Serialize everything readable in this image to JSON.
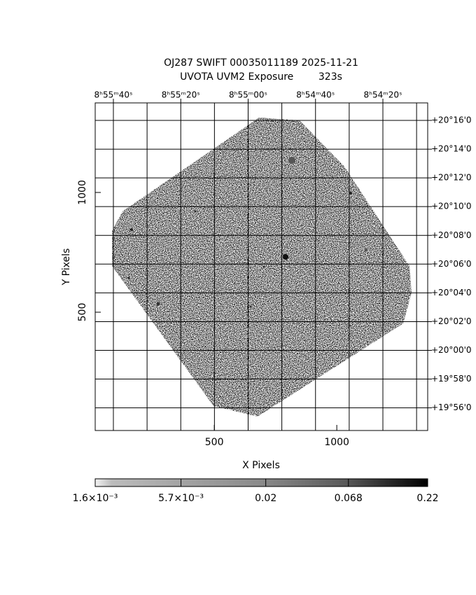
{
  "chart_data": {
    "type": "image",
    "title": "OJ287 SWIFT 00035011189 2025-11-21",
    "subtitle": "UVOTA UVM2 Exposure        323s",
    "x_label": "X Pixels",
    "y_label": "Y Pixels",
    "xlim": [
      14,
      1371
    ],
    "xticks": [
      500,
      1000
    ],
    "ylim": [
      6,
      1374
    ],
    "yticks": [
      500,
      1000
    ],
    "ra_lim": [
      3345.4,
      3246.7
    ],
    "ra_ticks": [
      {
        "value": 3340,
        "label": "8ʰ55ᵐ40ˢ"
      },
      {
        "value": 3320,
        "label": "8ʰ55ᵐ20ˢ"
      },
      {
        "value": 3300,
        "label": "8ʰ55ᵐ00ˢ"
      },
      {
        "value": 3280,
        "label": "8ʰ54ᵐ40ˢ"
      },
      {
        "value": 3260,
        "label": "8ʰ54ᵐ20ˢ"
      }
    ],
    "ra_minor_ticks": [
      3330,
      3310,
      3290,
      3270,
      3250
    ],
    "dec_lim": [
      19.907,
      20.287
    ],
    "dec_ticks": [
      {
        "value": 20.2667,
        "label": "+20°16'0"
      },
      {
        "value": 20.2333,
        "label": "+20°14'0"
      },
      {
        "value": 20.2,
        "label": "+20°12'0"
      },
      {
        "value": 20.1667,
        "label": "+20°10'0"
      },
      {
        "value": 20.1333,
        "label": "+20°08'0"
      },
      {
        "value": 20.1,
        "label": "+20°06'0"
      },
      {
        "value": 20.0667,
        "label": "+20°04'0"
      },
      {
        "value": 20.0333,
        "label": "+20°02'0"
      },
      {
        "value": 20.0,
        "label": "+20°00'0"
      },
      {
        "value": 19.9667,
        "label": "+19°58'0"
      },
      {
        "value": 19.9333,
        "label": "+19°56'0"
      }
    ],
    "colorbar_lim": [
      0.0016,
      0.22
    ],
    "colorbar_log": true,
    "colorbar_ticks": [
      {
        "value": 0.0016,
        "label": "1.6×10⁻³"
      },
      {
        "value": 0.0057,
        "label": "5.7×10⁻³"
      },
      0.02,
      0.068,
      0.22
    ],
    "grid": true
  }
}
